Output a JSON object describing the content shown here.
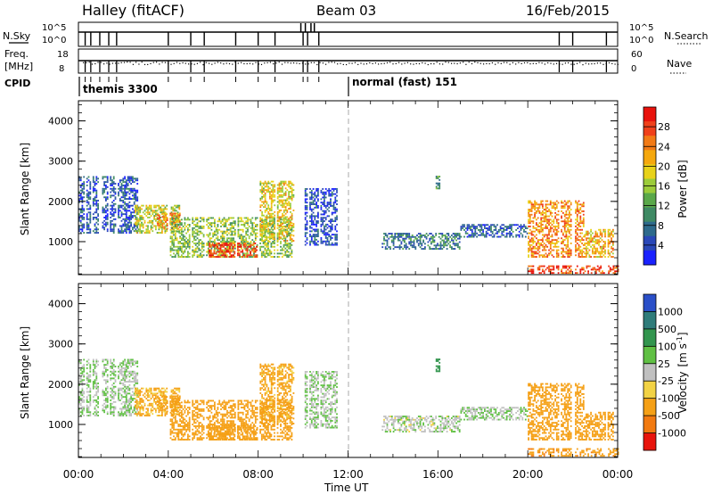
{
  "header": {
    "title": "Halley (fitACF)",
    "beam": "Beam 03",
    "date": "16/Feb/2015"
  },
  "top_panels": {
    "nsky_label": "N.Sky",
    "nsky_ticks": [
      "10^5",
      "10^0"
    ],
    "nsearch_label": "N.Search",
    "nsearch_ticks": [
      "10^5",
      "10^0"
    ],
    "freq_label_1": "Freq.",
    "freq_label_2": "[MHz]",
    "freq_ticks": [
      "18",
      "8"
    ],
    "nave_label": "Nave",
    "nave_ticks": [
      "60",
      "0"
    ],
    "cpid_label": "CPID",
    "cpid_blocks": [
      {
        "label": "themis 3300",
        "start_hour": 0
      },
      {
        "label": "normal (fast) 151",
        "start_hour": 12
      }
    ]
  },
  "power_colorbar": {
    "label": "Power [dB]",
    "ticks": [
      "28",
      "24",
      "20",
      "16",
      "12",
      "8",
      "4"
    ],
    "colors": [
      "#e8120c",
      "#f0401a",
      "#f27a16",
      "#f5a80e",
      "#e8d21a",
      "#9ccc3a",
      "#5aa84a",
      "#3f8a64",
      "#2e6a8c",
      "#2a48b8",
      "#1a22ff"
    ]
  },
  "velocity_colorbar": {
    "label_1": "Velocity",
    "label_2": "[m s",
    "label_sup": "-1",
    "label_3": "]",
    "ticks": [
      "1000",
      "500",
      "100",
      "25",
      "-25",
      "-100",
      "-500",
      "-1000"
    ],
    "colors": [
      "#2a4fc8",
      "#2f7c7a",
      "#32954e",
      "#60c044",
      "#c0c0c0",
      "#f2d244",
      "#f5a016",
      "#f27a10",
      "#e8140c"
    ]
  },
  "axes": {
    "ylabel": "Slant Range [km]",
    "yticks": [
      "4000",
      "3000",
      "2000",
      "1000"
    ],
    "xticks": [
      "00:00",
      "04:00",
      "08:00",
      "12:00",
      "16:00",
      "20:00",
      "00:00"
    ],
    "xlabel": "Time UT"
  },
  "chart_data": {
    "type": "heatmap",
    "x_unit": "hours UT",
    "xlim": [
      0,
      24
    ],
    "ylim": [
      180,
      4500
    ],
    "power_db_range": [
      0,
      30
    ],
    "velocity_range": [
      -1000,
      1000
    ],
    "cpid_switch_hour": 12,
    "tx_outage_hours": [
      0.3,
      0.55,
      0.95,
      1.35,
      1.7,
      4.0,
      5.0,
      5.6,
      7.0,
      8.0,
      8.75,
      10.0,
      10.2,
      10.7,
      21.4,
      22.0,
      23.5
    ],
    "echo_regions": [
      {
        "t": [
          0.0,
          2.6
        ],
        "r": [
          1200,
          2600
        ],
        "power": 5,
        "velocity": 20
      },
      {
        "t": [
          2.5,
          4.5
        ],
        "r": [
          1200,
          1900
        ],
        "power": 16,
        "velocity": -120
      },
      {
        "t": [
          3.5,
          4.5
        ],
        "r": [
          1300,
          1700
        ],
        "power": 22,
        "velocity": -150
      },
      {
        "t": [
          4.0,
          9.5
        ],
        "r": [
          600,
          1600
        ],
        "power": 14,
        "velocity": -200
      },
      {
        "t": [
          5.8,
          8.0
        ],
        "r": [
          600,
          950
        ],
        "power": 26,
        "velocity": -300
      },
      {
        "t": [
          8.0,
          9.6
        ],
        "r": [
          1000,
          2500
        ],
        "power": 18,
        "velocity": -150
      },
      {
        "t": [
          10.0,
          11.5
        ],
        "r": [
          900,
          2300
        ],
        "power": 4,
        "velocity": 25
      },
      {
        "t": [
          13.5,
          17.0
        ],
        "r": [
          800,
          1200
        ],
        "power": 8,
        "velocity": 10
      },
      {
        "t": [
          15.9,
          16.1
        ],
        "r": [
          2300,
          2600
        ],
        "power": 10,
        "velocity": 300
      },
      {
        "t": [
          17.0,
          20.0
        ],
        "r": [
          1100,
          1400
        ],
        "power": 6,
        "velocity": 20
      },
      {
        "t": [
          20.0,
          22.5
        ],
        "r": [
          600,
          2000
        ],
        "power": 22,
        "velocity": -300
      },
      {
        "t": [
          22.5,
          23.8
        ],
        "r": [
          600,
          1300
        ],
        "power": 20,
        "velocity": -200
      },
      {
        "t": [
          20.0,
          24.0
        ],
        "r": [
          200,
          400
        ],
        "power": 26,
        "velocity": -400
      }
    ]
  }
}
